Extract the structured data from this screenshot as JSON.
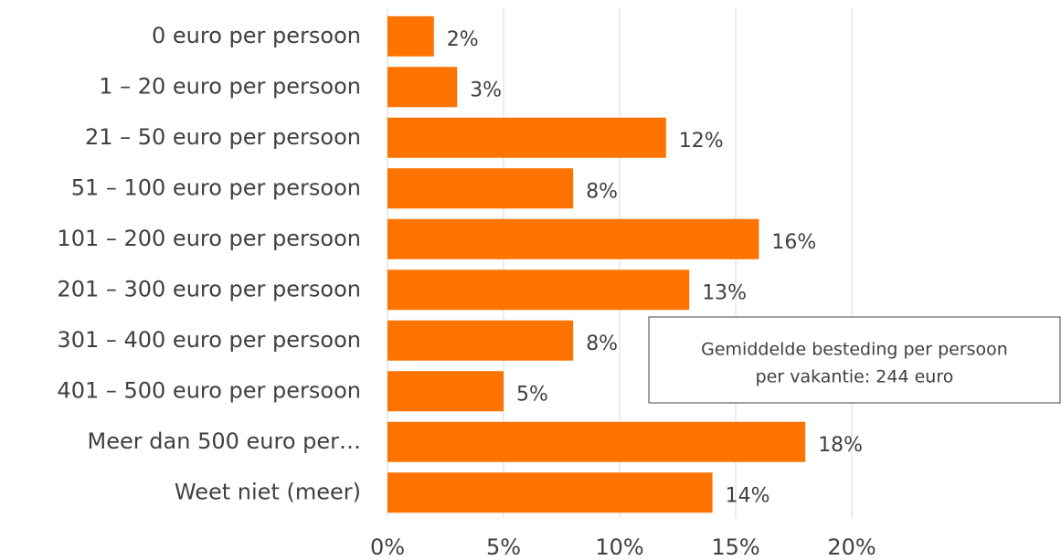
{
  "chart_data": {
    "type": "hbar",
    "categories": [
      "0 euro per persoon",
      "1 – 20 euro per persoon",
      "21 – 50 euro per persoon",
      "51 – 100 euro per persoon",
      "101 – 200 euro per persoon",
      "201 – 300 euro per persoon",
      "301 – 400 euro per persoon",
      "401 – 500 euro per persoon",
      "Meer dan 500 euro per…",
      "Weet niet (meer)"
    ],
    "values": [
      2,
      3,
      12,
      8,
      16,
      13,
      8,
      5,
      18,
      14
    ],
    "value_labels": [
      "2%",
      "3%",
      "12%",
      "8%",
      "16%",
      "13%",
      "8%",
      "5%",
      "18%",
      "14%"
    ],
    "color": "#ff7300",
    "xlim": [
      0,
      20
    ],
    "xticks": [
      {
        "value": 0,
        "label": "0%"
      },
      {
        "value": 5,
        "label": "5%"
      },
      {
        "value": 10,
        "label": "10%"
      },
      {
        "value": 15,
        "label": "15%"
      },
      {
        "value": 20,
        "label": "20%"
      }
    ],
    "grid": true,
    "annotation": [
      "Gemiddelde besteding per persoon",
      "per vakantie: 244 euro"
    ]
  }
}
